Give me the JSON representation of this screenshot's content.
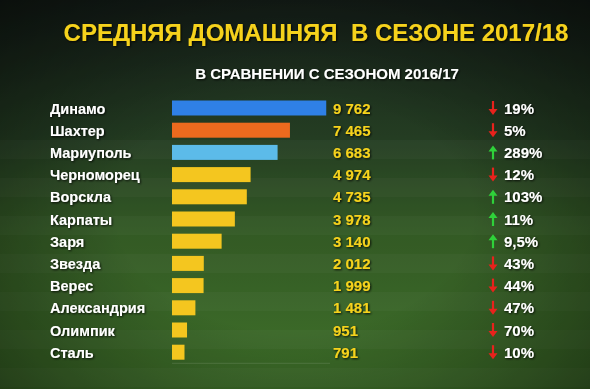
{
  "chart_data": {
    "type": "bar",
    "orientation": "horizontal",
    "title": "СРЕДНЯЯ ДОМАШНЯЯ  В СЕЗОНЕ 2017/18",
    "subtitle": "В СРАВНЕНИИ С СЕЗОНОМ 2016/17",
    "categories": [
      "Динамо",
      "Шахтер",
      "Мариуполь",
      "Черноморец",
      "Ворскла",
      "Карпаты",
      "Заря",
      "Звезда",
      "Верес",
      "Александрия",
      "Олимпик",
      "Сталь"
    ],
    "values": [
      9762,
      7465,
      6683,
      4974,
      4735,
      3978,
      3140,
      2012,
      1999,
      1481,
      951,
      791
    ],
    "value_labels": [
      "9 762",
      "7 465",
      "6 683",
      "4 974",
      "4 735",
      "3 978",
      "3 140",
      "2 012",
      "1 999",
      "1 481",
      "951",
      "791"
    ],
    "colors": [
      "#2f80e6",
      "#ec6a1e",
      "#5cbbe9",
      "#f4c61f",
      "#f4c61f",
      "#f4c61f",
      "#f4c61f",
      "#f4c61f",
      "#f4c61f",
      "#f4c61f",
      "#f4c61f",
      "#f4c61f"
    ],
    "changes": [
      -19,
      -5,
      289,
      -12,
      103,
      11,
      9.5,
      -43,
      -44,
      -47,
      -70,
      -10
    ],
    "change_labels": [
      "19%",
      "5%",
      "289%",
      "12%",
      "103%",
      "11%",
      "9,5%",
      "43%",
      "44%",
      "47%",
      "70%",
      "10%"
    ],
    "xlim": [
      0,
      10000
    ],
    "data_labels": true,
    "tick_labels": false
  }
}
